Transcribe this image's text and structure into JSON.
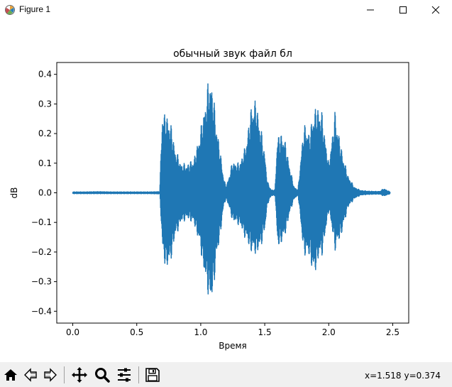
{
  "window": {
    "title": "Figure 1",
    "minimize_icon": "minimize-icon",
    "maximize_icon": "maximize-icon",
    "close_icon": "close-icon"
  },
  "toolbar": {
    "buttons": [
      "home-icon",
      "back-arrow-icon",
      "forward-arrow-icon",
      "pan-icon",
      "zoom-icon",
      "subplots-icon",
      "save-icon"
    ],
    "coord_x": "x=1.518",
    "coord_y": "y=0.374"
  },
  "chart_data": {
    "type": "line",
    "title": "обычный звук файл бл",
    "xlabel": "Время",
    "ylabel": "dB",
    "xlim": [
      -0.125,
      2.625
    ],
    "ylim": [
      -0.44,
      0.44
    ],
    "xticks": [
      0.0,
      0.5,
      1.0,
      1.5,
      2.0,
      2.5
    ],
    "xtick_labels": [
      "0.0",
      "0.5",
      "1.0",
      "1.5",
      "2.0",
      "2.5"
    ],
    "yticks": [
      -0.4,
      -0.3,
      -0.2,
      -0.1,
      0.0,
      0.1,
      0.2,
      0.3,
      0.4
    ],
    "ytick_labels": [
      "−0.4",
      "−0.3",
      "−0.2",
      "−0.1",
      "0.0",
      "0.1",
      "0.2",
      "0.3",
      "0.4"
    ],
    "grid": false,
    "line_color": "#1f77b4",
    "series": [
      {
        "x": [
          0.0,
          0.1,
          0.2,
          0.3,
          0.4,
          0.5,
          0.6,
          0.68,
          0.7,
          0.72,
          0.75,
          0.78,
          0.8,
          0.85,
          0.9,
          0.95,
          1.0,
          1.03,
          1.06,
          1.08,
          1.1,
          1.12,
          1.15,
          1.18,
          1.2,
          1.25,
          1.3,
          1.35,
          1.4,
          1.43,
          1.46,
          1.5,
          1.52,
          1.55,
          1.58,
          1.6,
          1.65,
          1.7,
          1.73,
          1.76,
          1.8,
          1.82,
          1.85,
          1.88,
          1.92,
          1.95,
          2.0,
          2.05,
          2.1,
          2.15,
          2.2,
          2.25,
          2.3,
          2.35,
          2.4,
          2.43,
          2.45,
          2.48
        ],
        "max": [
          0.003,
          0.003,
          0.004,
          0.003,
          0.003,
          0.003,
          0.003,
          0.004,
          0.29,
          0.27,
          0.26,
          0.21,
          0.15,
          0.1,
          0.1,
          0.12,
          0.22,
          0.3,
          0.38,
          0.4,
          0.33,
          0.25,
          0.15,
          0.05,
          0.02,
          0.11,
          0.1,
          0.16,
          0.31,
          0.32,
          0.25,
          0.14,
          0.04,
          0.01,
          0.01,
          0.2,
          0.2,
          0.08,
          0.02,
          0.01,
          0.21,
          0.24,
          0.2,
          0.28,
          0.3,
          0.27,
          0.1,
          0.28,
          0.15,
          0.06,
          0.02,
          0.008,
          0.006,
          0.005,
          0.005,
          0.015,
          0.01,
          0.003
        ],
        "min": [
          -0.003,
          -0.003,
          -0.003,
          -0.003,
          -0.003,
          -0.003,
          -0.003,
          -0.004,
          -0.21,
          -0.25,
          -0.26,
          -0.2,
          -0.15,
          -0.1,
          -0.09,
          -0.11,
          -0.2,
          -0.3,
          -0.35,
          -0.4,
          -0.32,
          -0.24,
          -0.15,
          -0.04,
          -0.02,
          -0.1,
          -0.11,
          -0.16,
          -0.21,
          -0.21,
          -0.2,
          -0.13,
          -0.04,
          -0.01,
          -0.01,
          -0.19,
          -0.16,
          -0.06,
          -0.02,
          -0.01,
          -0.2,
          -0.22,
          -0.22,
          -0.29,
          -0.23,
          -0.21,
          -0.06,
          -0.2,
          -0.14,
          -0.05,
          -0.02,
          -0.008,
          -0.006,
          -0.005,
          -0.005,
          -0.012,
          -0.008,
          -0.003
        ]
      }
    ]
  }
}
